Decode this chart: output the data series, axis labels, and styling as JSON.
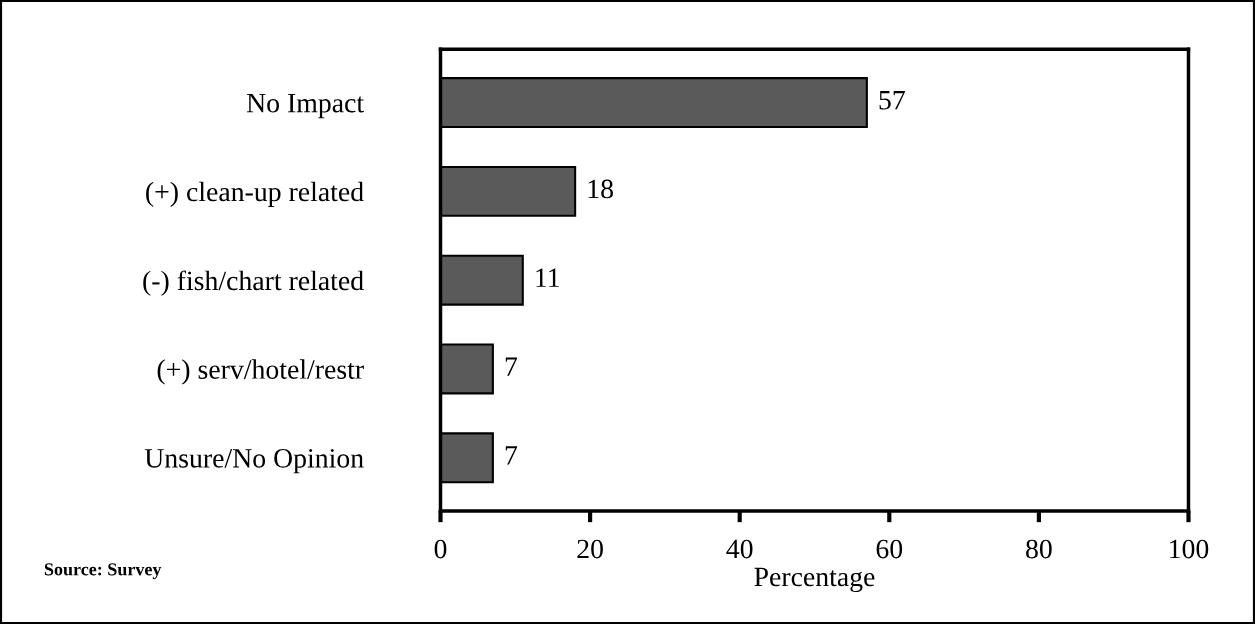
{
  "chart_data": {
    "type": "bar",
    "orientation": "horizontal",
    "categories": [
      "No Impact",
      "(+) clean-up related",
      "(-) fish/chart related",
      "(+) serv/hotel/restr",
      "Unsure/No Opinion"
    ],
    "values": [
      57,
      18,
      11,
      7,
      7
    ],
    "color": "#5a5a5a",
    "xlabel": "Percentage",
    "xlim": [
      0,
      100
    ],
    "xticks": [
      0,
      20,
      40,
      60,
      80,
      100
    ],
    "data_labels": true,
    "grid": false,
    "legend": false,
    "annotations": [
      "Source: Survey"
    ]
  }
}
